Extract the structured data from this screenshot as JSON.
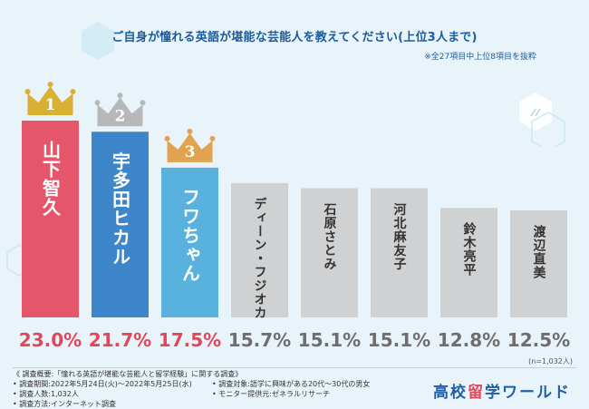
{
  "title": "ご自身が憧れる英語が堪能な芸能人を教えてください(上位3人まで)",
  "note": "※全27項目中上位8項目を抜粋",
  "sample_note": "(n=1,032人)",
  "colors": {
    "rank1": "#e5566a",
    "rank2": "#3d86c9",
    "rank3": "#59b2de",
    "other": "#cfd1d3",
    "gold": "#d8b132",
    "silver": "#b6b8ba",
    "bronze": "#e1a34f",
    "value_red": "#e2465a",
    "value_gray": "#6e6e6e"
  },
  "chart_data": {
    "type": "bar",
    "categories": [
      "山下智久",
      "宇多田ヒカル",
      "フワちゃん",
      "ディーン・フジオカ",
      "石原さとみ",
      "河北麻友子",
      "鈴木亮平",
      "渡辺直美"
    ],
    "values": [
      23.0,
      21.7,
      17.5,
      15.7,
      15.1,
      15.1,
      12.8,
      12.5
    ],
    "value_labels": [
      "23.0%",
      "21.7%",
      "17.5%",
      "15.7%",
      "15.1%",
      "15.1%",
      "12.8%",
      "12.5%"
    ],
    "ranks": [
      "1",
      "2",
      "3"
    ],
    "title": "",
    "xlabel": "",
    "ylabel": "",
    "ylim": [
      0,
      23.0
    ],
    "grid": false,
    "legend": "none"
  },
  "survey": {
    "heading": "《 調査概要:「憧れる英語が堪能な芸能人と留学経験」に関する調査》",
    "period": "• 調査期間:2022年5月24日(火)〜2022年5月25日(水)",
    "target": "• 調査対象:語学に興味がある20代〜30代の男女",
    "count": "• 調査人数:1,032人",
    "method": "• 調査方法:インターネット調査",
    "provider": "• モニター提供元:ゼネラルリサーチ"
  },
  "brand": {
    "part1": "高校",
    "part2": "留",
    "part3": "学ワールド"
  }
}
